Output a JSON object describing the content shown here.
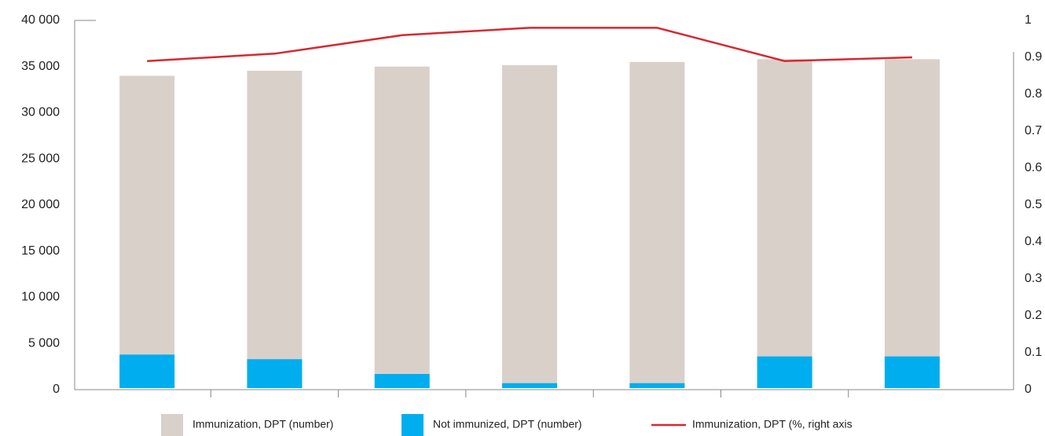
{
  "chart_data": {
    "type": "bar-line",
    "categories": [
      null,
      null,
      null,
      null,
      null,
      null,
      null
    ],
    "series": [
      {
        "name": "Immunization, DPT (number)",
        "type": "bar",
        "color": "#d9d0ca",
        "values": [
          34000,
          34550,
          35000,
          35150,
          35500,
          35800,
          35800
        ]
      },
      {
        "name": "Not immunized, DPT (number)",
        "type": "bar",
        "color": "#00aeef",
        "values": [
          3800,
          3300,
          1700,
          700,
          700,
          3600,
          3600
        ]
      },
      {
        "name": "Immunization, DPT (%, right axis",
        "type": "line",
        "axis": "y2",
        "color": "#d7282f",
        "values": [
          0.89,
          0.91,
          0.96,
          0.98,
          0.98,
          0.89,
          0.9
        ]
      }
    ],
    "ylim": [
      0,
      40000
    ],
    "yticks": [
      0,
      {
        "value": 5000,
        "label": "5 000"
      },
      {
        "value": 10000,
        "label": "10 000"
      },
      {
        "value": 15000,
        "label": "15 000"
      },
      {
        "value": 20000,
        "label": "20 000"
      },
      {
        "value": 25000,
        "label": "25 000"
      },
      {
        "value": 30000,
        "label": "30 000"
      },
      {
        "value": 35000,
        "label": "35 000"
      },
      {
        "value": 40000,
        "label": "40 000"
      }
    ],
    "y2lim": [
      0,
      1
    ],
    "y2ticks": [
      0,
      0.1,
      0.2,
      0.3,
      0.4,
      0.5,
      0.6,
      0.7,
      0.8,
      0.9,
      1
    ],
    "grid": false,
    "legend": "bottom"
  }
}
